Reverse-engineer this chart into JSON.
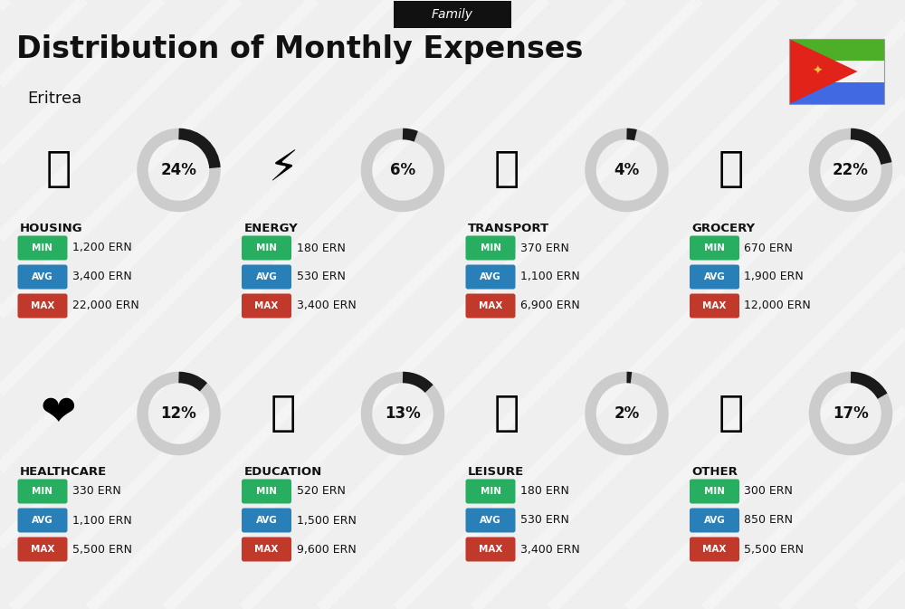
{
  "title": "Distribution of Monthly Expenses",
  "subtitle": "Eritrea",
  "tag": "Family",
  "background_color": "#efefef",
  "categories": [
    {
      "name": "HOUSING",
      "percent": 24,
      "min": "1,200 ERN",
      "avg": "3,400 ERN",
      "max": "22,000 ERN",
      "icon": "🏘",
      "col": 0,
      "row": 0
    },
    {
      "name": "ENERGY",
      "percent": 6,
      "min": "180 ERN",
      "avg": "530 ERN",
      "max": "3,400 ERN",
      "icon": "⚡",
      "col": 1,
      "row": 0
    },
    {
      "name": "TRANSPORT",
      "percent": 4,
      "min": "370 ERN",
      "avg": "1,100 ERN",
      "max": "6,900 ERN",
      "icon": "🚌",
      "col": 2,
      "row": 0
    },
    {
      "name": "GROCERY",
      "percent": 22,
      "min": "670 ERN",
      "avg": "1,900 ERN",
      "max": "12,000 ERN",
      "icon": "🛒",
      "col": 3,
      "row": 0
    },
    {
      "name": "HEALTHCARE",
      "percent": 12,
      "min": "330 ERN",
      "avg": "1,100 ERN",
      "max": "5,500 ERN",
      "icon": "❤️",
      "col": 0,
      "row": 1
    },
    {
      "name": "EDUCATION",
      "percent": 13,
      "min": "520 ERN",
      "avg": "1,500 ERN",
      "max": "9,600 ERN",
      "icon": "🎓",
      "col": 1,
      "row": 1
    },
    {
      "name": "LEISURE",
      "percent": 2,
      "min": "180 ERN",
      "avg": "530 ERN",
      "max": "3,400 ERN",
      "icon": "🛍️",
      "col": 2,
      "row": 1
    },
    {
      "name": "OTHER",
      "percent": 17,
      "min": "300 ERN",
      "avg": "850 ERN",
      "max": "5,500 ERN",
      "icon": "👜",
      "col": 3,
      "row": 1
    }
  ],
  "min_color": "#27ae60",
  "avg_color": "#2980b9",
  "max_color": "#c0392b",
  "donut_bg": "#cccccc",
  "donut_fg": "#1a1a1a",
  "text_color": "#111111",
  "stripe_color": "#ffffff",
  "tag_bg": "#111111",
  "tag_fg": "#ffffff",
  "flag_colors": {
    "green": "#4daf27",
    "red": "#e2231a",
    "blue": "#4169e1"
  },
  "card_cols": 4,
  "card_rows": 2,
  "fig_width": 10.0,
  "fig_height": 6.73,
  "dpi": 100
}
